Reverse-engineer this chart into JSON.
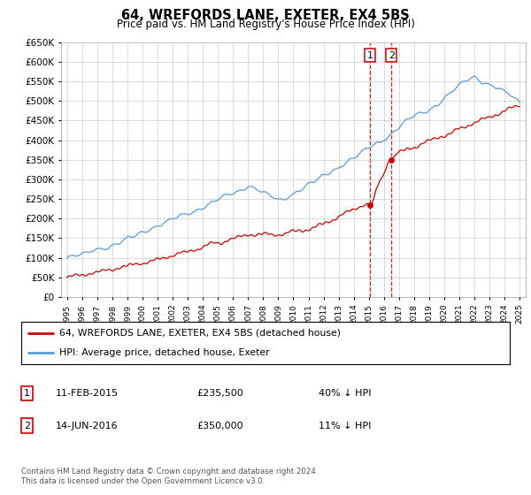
{
  "title": "64, WREFORDS LANE, EXETER, EX4 5BS",
  "subtitle": "Price paid vs. HM Land Registry's House Price Index (HPI)",
  "legend_line1": "64, WREFORDS LANE, EXETER, EX4 5BS (detached house)",
  "legend_line2": "HPI: Average price, detached house, Exeter",
  "annotation1_num": "1",
  "annotation1_date": "11-FEB-2015",
  "annotation1_price": "£235,500",
  "annotation1_pct": "40% ↓ HPI",
  "annotation2_num": "2",
  "annotation2_date": "14-JUN-2016",
  "annotation2_price": "£350,000",
  "annotation2_pct": "11% ↓ HPI",
  "footer": "Contains HM Land Registry data © Crown copyright and database right 2024.\nThis data is licensed under the Open Government Licence v3.0.",
  "red_color": "#cc0000",
  "blue_color": "#5b9bd5",
  "vline_color": "#cc0000",
  "shade_color": "#ddeeff",
  "background_color": "#ffffff",
  "grid_color": "#cccccc",
  "ylim": [
    0,
    650000
  ],
  "yticks": [
    0,
    50000,
    100000,
    150000,
    200000,
    250000,
    300000,
    350000,
    400000,
    450000,
    500000,
    550000,
    600000,
    650000
  ],
  "marker1_year": 2015.1,
  "marker1_value": 235500,
  "marker2_year": 2016.5,
  "marker2_value": 350000,
  "xmin": 1995,
  "xmax": 2025
}
